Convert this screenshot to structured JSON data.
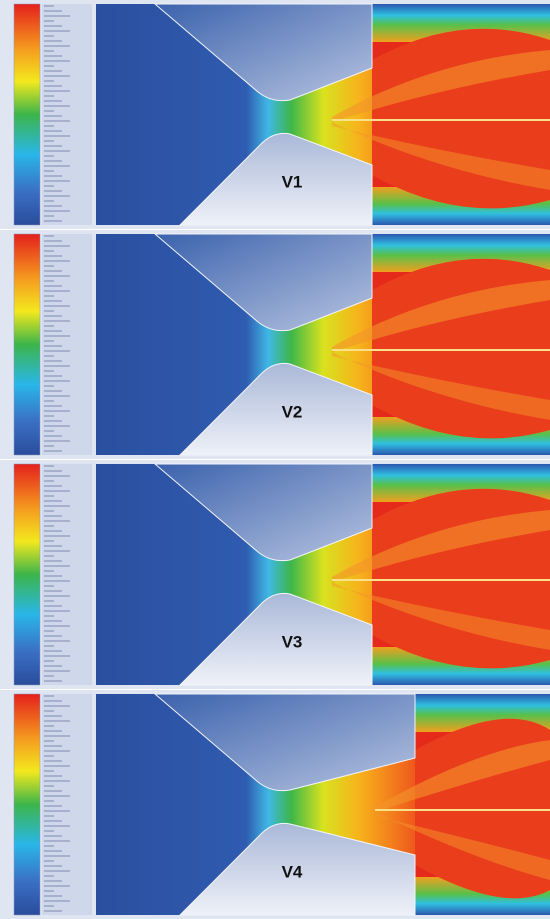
{
  "panels": [
    {
      "label": "V1"
    },
    {
      "label": "V2"
    },
    {
      "label": "V3"
    },
    {
      "label": "V4"
    }
  ]
}
